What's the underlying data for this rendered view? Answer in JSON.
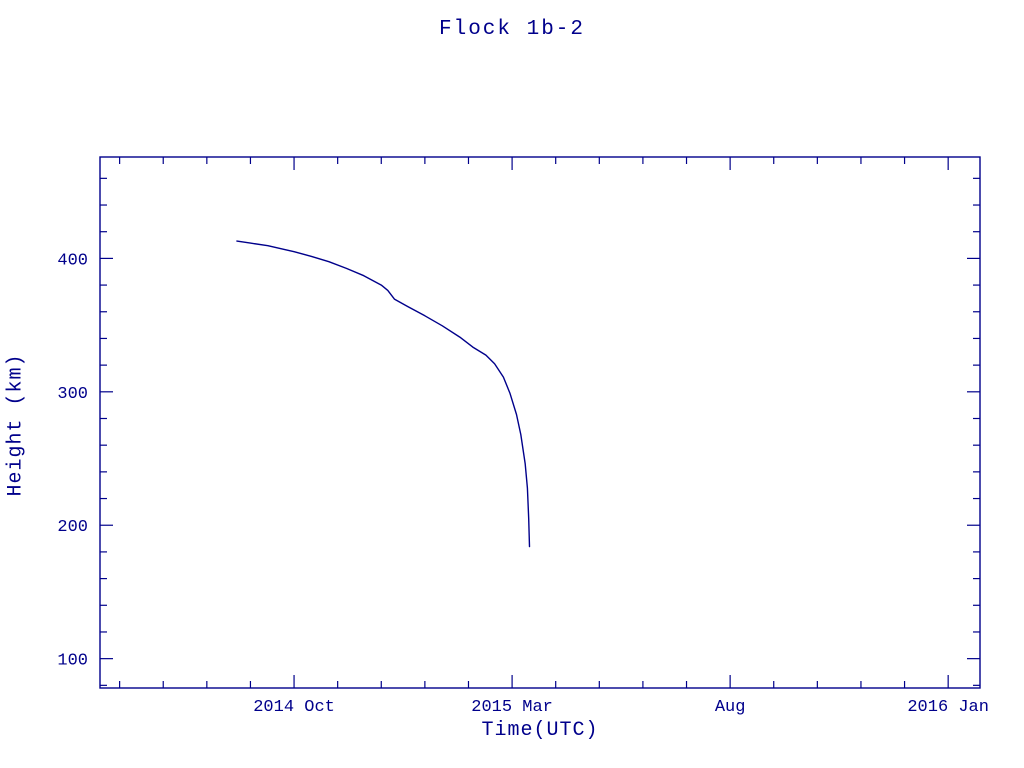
{
  "chart_data": {
    "type": "line",
    "title": "Flock 1b-2",
    "xlabel": "Time(UTC)",
    "ylabel": "Height (km)",
    "line_color": "#00008b",
    "axis_color": "#00008b",
    "x_unit": "months since 2014-10-01",
    "xlim": [
      -4.45,
      15.73
    ],
    "ylim": [
      78,
      476
    ],
    "x_major_ticks": [
      {
        "value": 0,
        "label": "2014 Oct"
      },
      {
        "value": 5,
        "label": "2015 Mar"
      },
      {
        "value": 10,
        "label": "Aug"
      },
      {
        "value": 15,
        "label": "2016 Jan"
      }
    ],
    "x_minor_step": 1,
    "y_major_ticks": [
      {
        "value": 100,
        "label": "100"
      },
      {
        "value": 200,
        "label": "200"
      },
      {
        "value": 300,
        "label": "300"
      },
      {
        "value": 400,
        "label": "400"
      }
    ],
    "y_minor_step": 20,
    "grid": false,
    "legend": "none",
    "series": [
      {
        "name": "Flock 1b-2 orbital height",
        "x": [
          -1.31,
          -1.0,
          -0.6,
          -0.2,
          0.0,
          0.4,
          0.8,
          1.2,
          1.6,
          2.0,
          2.15,
          2.3,
          2.6,
          3.0,
          3.4,
          3.8,
          4.1,
          4.4,
          4.6,
          4.8,
          4.95,
          5.1,
          5.2,
          5.3,
          5.35,
          5.38,
          5.4
        ],
        "y": [
          413,
          411.5,
          409.5,
          406.5,
          405,
          401.5,
          397.5,
          392.5,
          387,
          380,
          376,
          369.5,
          364,
          357,
          349.5,
          341,
          333.5,
          327.5,
          321,
          311,
          299,
          283,
          268,
          246,
          228,
          205,
          184
        ]
      }
    ]
  }
}
